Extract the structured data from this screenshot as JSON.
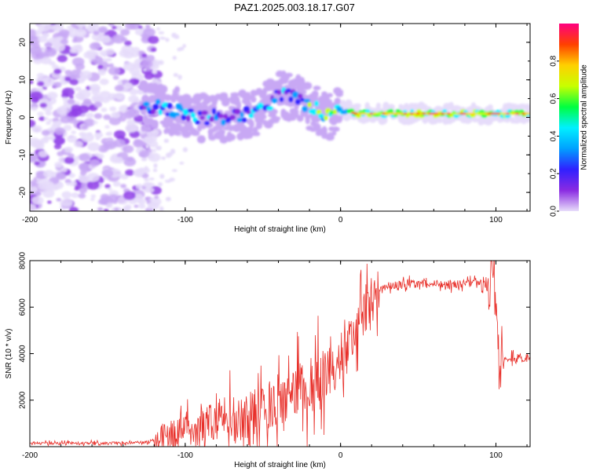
{
  "title": "PAZ1.2025.003.18.17.G07",
  "chart_data": [
    {
      "type": "heatmap",
      "xlabel": "Height of straight line (km)",
      "ylabel": "Frequency (Hz)",
      "xlim": [
        -200,
        122
      ],
      "ylim": [
        -25,
        25
      ],
      "xticks": [
        -200,
        -100,
        0,
        100
      ],
      "yticks": [
        -20,
        -10,
        0,
        10,
        20
      ],
      "colorbar": {
        "label": "Normalized spectral amplitude",
        "range": [
          0,
          1
        ],
        "ticks": [
          "0.0",
          "0.2",
          "0.4",
          "0.6",
          "0.8"
        ],
        "colors": [
          "#e8ddfa",
          "#8a2be2",
          "#3020ff",
          "#00a0ff",
          "#00f0ff",
          "#00ff40",
          "#c8ff00",
          "#ffd000",
          "#ff4000",
          "#ff0080"
        ]
      },
      "ridge": {
        "x": [
          -128,
          -110,
          -90,
          -70,
          -55,
          -45,
          -38,
          -30,
          -20,
          -10,
          -5,
          0,
          10,
          20,
          40,
          60,
          80,
          100,
          110,
          122
        ],
        "y": [
          3,
          2,
          0,
          0,
          1,
          4,
          6,
          5,
          3,
          1,
          0,
          2,
          1,
          1,
          1,
          1,
          1,
          1,
          1,
          1
        ]
      },
      "noise_region": {
        "x": [
          -200,
          -128
        ],
        "y": [
          -25,
          25
        ]
      }
    },
    {
      "type": "line",
      "xlabel": "Height of straight line (km)",
      "ylabel": "SNR (10 * v/v)",
      "xlim": [
        -200,
        122
      ],
      "ylim": [
        0,
        8000
      ],
      "xticks": [
        -200,
        -100,
        0,
        100
      ],
      "yticks": [
        2000,
        4000,
        6000,
        8000
      ],
      "color": "#e8302a",
      "series": [
        {
          "x": [
            -200,
            -180,
            -160,
            -140,
            -125,
            -115,
            -105,
            -95,
            -85,
            -75,
            -65,
            -55,
            -45,
            -35,
            -25,
            -15,
            -10,
            -5,
            0,
            5,
            10,
            15,
            20,
            25,
            30,
            40,
            50,
            60,
            70,
            80,
            90,
            95,
            98,
            100,
            102,
            105,
            110,
            115,
            122
          ],
          "y": [
            150,
            150,
            150,
            150,
            200,
            400,
            600,
            800,
            1000,
            1300,
            1200,
            1500,
            1900,
            2100,
            2400,
            2700,
            3000,
            3300,
            4000,
            4400,
            5000,
            5800,
            6300,
            6700,
            6900,
            7000,
            7000,
            7000,
            7000,
            7000,
            7000,
            6900,
            7300,
            6000,
            3900,
            3800,
            3850,
            3800,
            3800
          ]
        }
      ]
    }
  ]
}
